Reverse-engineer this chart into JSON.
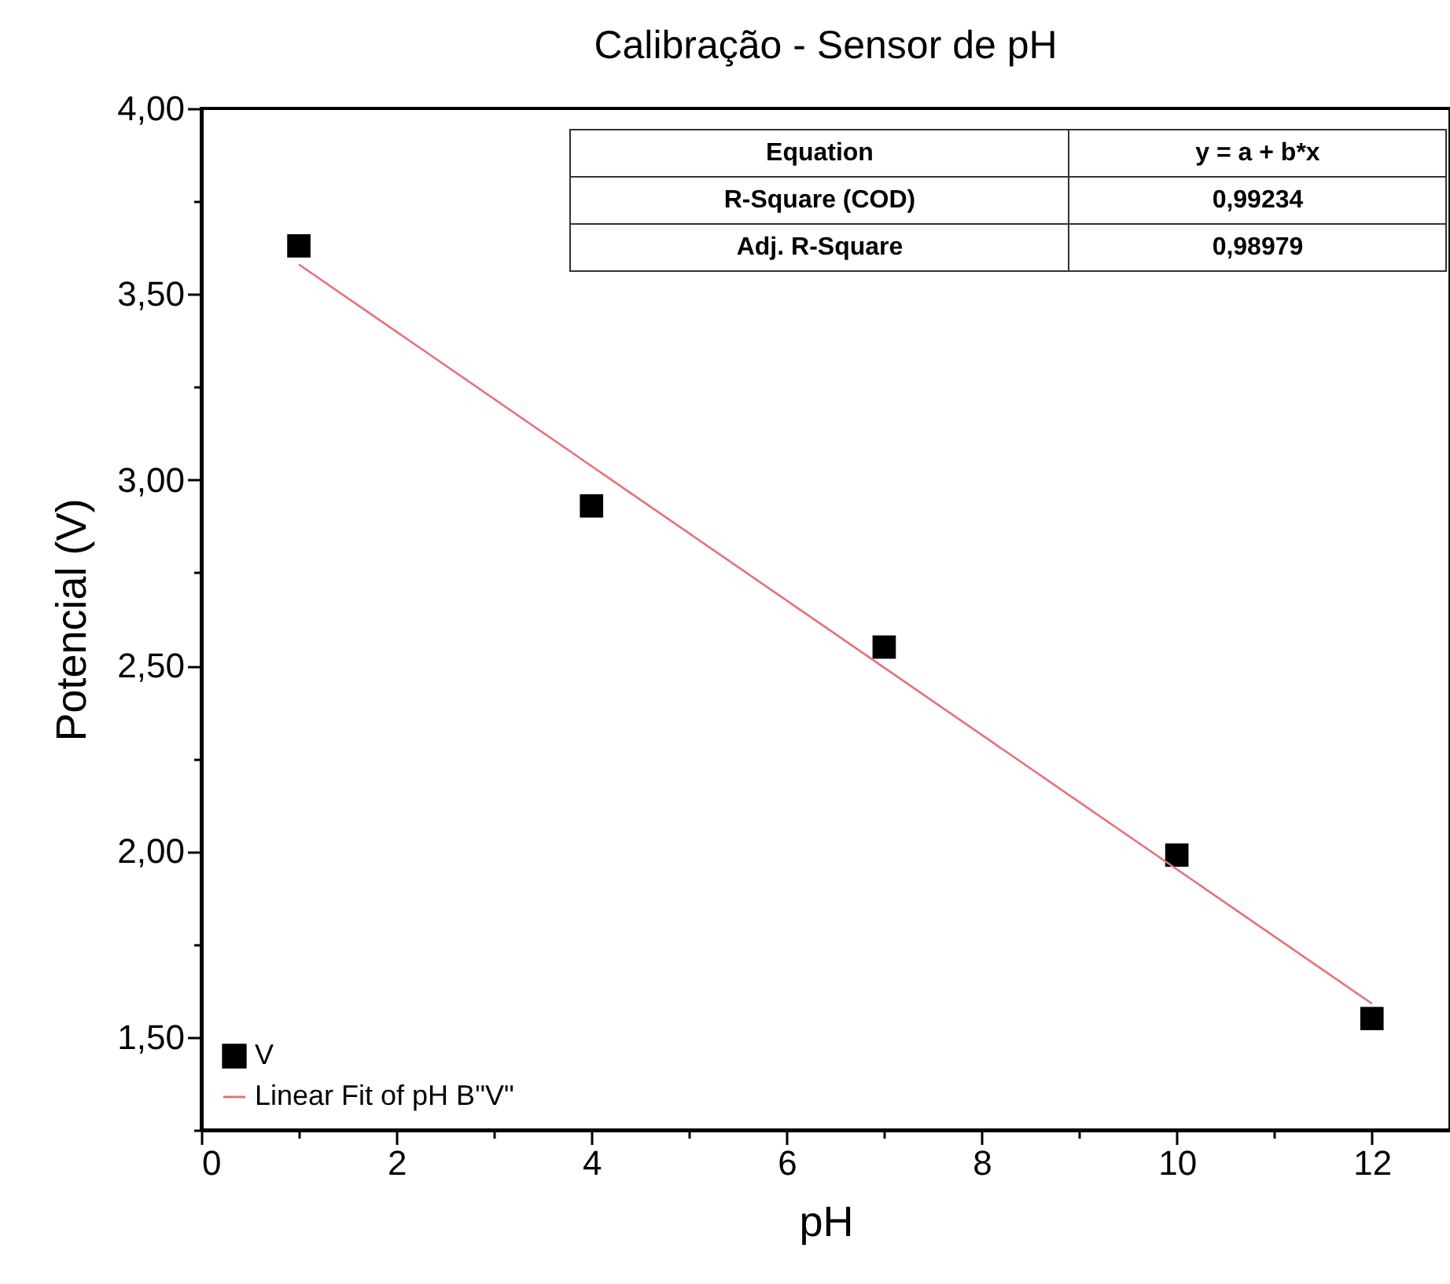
{
  "chart_data": {
    "type": "scatter",
    "title": "Calibração - Sensor de pH",
    "xlabel": "pH",
    "ylabel": "Potencial (V)",
    "series": [
      {
        "name": "V",
        "color": "#000000",
        "marker": "square",
        "x": [
          1,
          4,
          7,
          10,
          12
        ],
        "values": [
          3.63,
          2.93,
          2.55,
          1.99,
          1.55
        ]
      },
      {
        "name": "Linear Fit of pH B\"V\"",
        "type": "line",
        "color": "#e8707a",
        "line_style": "solid",
        "x": [
          1,
          12
        ],
        "values": [
          3.58,
          1.59
        ]
      }
    ],
    "xlim": [
      0,
      12.8
    ],
    "xticks": [
      0,
      {
        "value": 1,
        "label": null
      },
      2,
      {
        "value": 3,
        "label": null
      },
      4,
      {
        "value": 5,
        "label": null
      },
      6,
      {
        "value": 7,
        "label": null
      },
      8,
      {
        "value": 9,
        "label": null
      },
      10,
      {
        "value": 11,
        "label": null
      },
      12
    ],
    "ylim": [
      1.25,
      4.0
    ],
    "yticks": [
      {
        "value": 1.25,
        "label": null
      },
      {
        "value": 1.5,
        "label": "1,50"
      },
      {
        "value": 1.75,
        "label": null
      },
      {
        "value": 2.0,
        "label": "2,00"
      },
      {
        "value": 2.25,
        "label": null
      },
      {
        "value": 2.5,
        "label": "2,50"
      },
      {
        "value": 2.75,
        "label": null
      },
      {
        "value": 3.0,
        "label": "3,00"
      },
      {
        "value": 3.25,
        "label": null
      },
      {
        "value": 3.5,
        "label": "3,50"
      },
      {
        "value": 3.75,
        "label": null
      },
      {
        "value": 4.0,
        "label": "4,00"
      }
    ],
    "grid": false,
    "legend": "bottom left",
    "annotations": [
      "Equation",
      "y = a + b*x",
      "R-Square (COD)",
      "0,99234",
      "Adj. R-Square",
      "0,98979"
    ]
  }
}
